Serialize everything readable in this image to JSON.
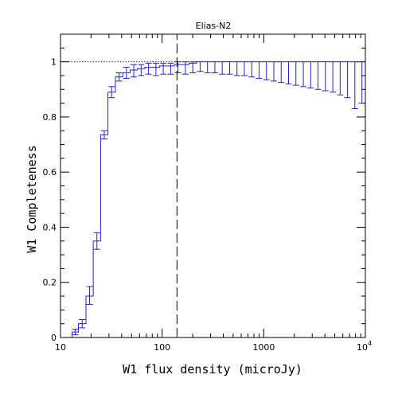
{
  "chart_data": {
    "type": "line",
    "title": "Elias-N2",
    "xlabel": "W1 flux density (microJy)",
    "ylabel": "W1 Completeness",
    "x_scale": "log",
    "xlim": [
      10,
      10000
    ],
    "ylim": [
      0,
      1.1
    ],
    "grid": false,
    "x_ticks": [
      {
        "value": 10,
        "label": "10"
      },
      {
        "value": 100,
        "label": "100"
      },
      {
        "value": 1000,
        "label": "1000"
      },
      {
        "value": 10000,
        "label": "10",
        "exponent": "4"
      }
    ],
    "y_ticks": [
      {
        "value": 0,
        "label": "0"
      },
      {
        "value": 0.2,
        "label": "0.2"
      },
      {
        "value": 0.4,
        "label": "0.4"
      },
      {
        "value": 0.6,
        "label": "0.6"
      },
      {
        "value": 0.8,
        "label": "0.8"
      },
      {
        "value": 1,
        "label": "1"
      }
    ],
    "reference_lines": {
      "horizontal_dotted_y": 1.0,
      "vertical_dashed_x": 140
    },
    "series": [
      {
        "style": "histogram-step",
        "color": "#2323c8",
        "bin_edges": [
          11.0,
          13.0,
          15.0,
          17.8,
          21.0,
          24.8,
          29.3,
          34.7,
          41.0,
          48.4,
          57.2,
          67.6,
          79.9,
          94.4,
          111.6,
          131.9,
          155.8,
          184.1,
          217.6,
          257.2,
          303.9,
          359.1,
          424.4,
          501.5,
          592.7,
          700.4,
          827.7,
          978.1,
          1155.9,
          1366.0,
          1614.2,
          1907.6,
          2254.3,
          2664.0,
          3148.1,
          3720.3,
          4396.4,
          5195.4,
          6139.7,
          7255.5,
          8574.1,
          10000.0
        ],
        "values": [
          0.0,
          0.02,
          0.05,
          0.15,
          0.35,
          0.735,
          0.89,
          0.945,
          0.96,
          0.97,
          0.975,
          0.98,
          0.98,
          0.985,
          0.985,
          0.99,
          0.99,
          0.995,
          1.0,
          1.0,
          1.0,
          1.0,
          1.0,
          1.0,
          1.0,
          1.0,
          1.0,
          1.0,
          1.0,
          1.0,
          1.0,
          1.0,
          1.0,
          1.0,
          1.0,
          1.0,
          1.0,
          1.0,
          1.0,
          1.0,
          1.0
        ],
        "err_low": [
          0.0,
          0.01,
          0.015,
          0.03,
          0.03,
          0.015,
          0.02,
          0.015,
          0.02,
          0.025,
          0.025,
          0.025,
          0.03,
          0.03,
          0.03,
          0.03,
          0.035,
          0.035,
          0.035,
          0.04,
          0.04,
          0.045,
          0.045,
          0.05,
          0.05,
          0.055,
          0.06,
          0.065,
          0.07,
          0.075,
          0.08,
          0.085,
          0.09,
          0.095,
          0.1,
          0.105,
          0.11,
          0.12,
          0.13,
          0.17,
          0.15
        ],
        "err_high": [
          0.0,
          0.01,
          0.015,
          0.035,
          0.03,
          0.015,
          0.02,
          0.015,
          0.02,
          0.02,
          0.015,
          0.015,
          0.015,
          0.01,
          0.01,
          0.01,
          0.01,
          0.005,
          0.0,
          0.0,
          0.0,
          0.0,
          0.0,
          0.0,
          0.0,
          0.0,
          0.0,
          0.0,
          0.0,
          0.0,
          0.0,
          0.0,
          0.0,
          0.0,
          0.0,
          0.0,
          0.0,
          0.0,
          0.0,
          0.0,
          0.0
        ]
      }
    ]
  }
}
